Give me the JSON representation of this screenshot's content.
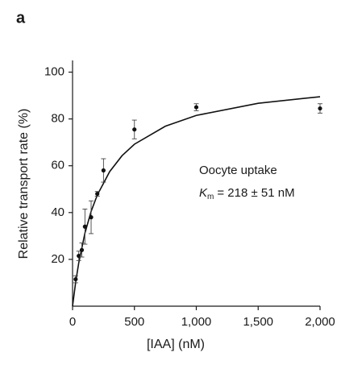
{
  "panel_label": "a",
  "chart_data": {
    "type": "scatter",
    "x_label": "[IAA] (nM)",
    "y_label": "Relative transport rate (%)",
    "xlim": [
      0,
      2000
    ],
    "ylim": [
      0,
      105
    ],
    "xticks": [
      0,
      500,
      {
        "value": 1000,
        "label": "1,000"
      },
      {
        "value": 1500,
        "label": "1,500"
      },
      {
        "value": 2000,
        "label": "2,000"
      }
    ],
    "yticks": [
      20,
      40,
      60,
      80,
      100
    ],
    "color": "#111111",
    "x": [
      25,
      50,
      75,
      100,
      150,
      200,
      250,
      500,
      1000,
      2000
    ],
    "values": [
      11.5,
      21.5,
      24,
      34,
      38,
      48,
      58,
      75.5,
      85,
      84.5
    ],
    "errors": [
      1.5,
      2,
      3,
      7.5,
      7,
      1,
      5,
      4,
      1.5,
      2
    ],
    "fit": {
      "x": [
        0,
        25,
        50,
        100,
        150,
        200,
        300,
        400,
        500,
        750,
        1000,
        1500,
        2000
      ],
      "y": [
        0,
        10.2,
        18.5,
        31.2,
        40.5,
        47.5,
        57.5,
        64.3,
        69.2,
        76.9,
        81.5,
        86.7,
        89.5
      ]
    },
    "annotation": {
      "line1": "Oocyte uptake",
      "km_symbol": "K",
      "km_subscript": "m",
      "km_text": "= 218 ± 51 nM"
    }
  }
}
